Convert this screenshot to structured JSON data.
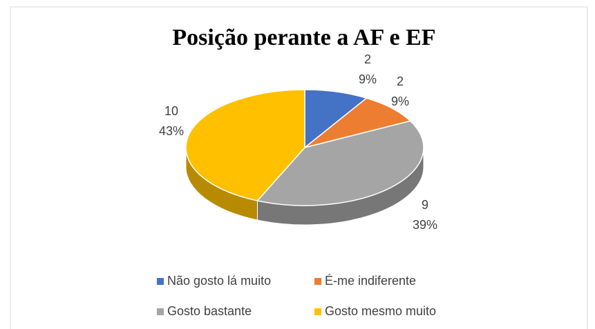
{
  "chart_data": {
    "type": "pie3d",
    "title": "Posição perante a AF e EF",
    "categories": [
      "Não gosto lá muito",
      "É-me indiferente",
      "Gosto bastante",
      "Gosto mesmo muito"
    ],
    "values": [
      2,
      2,
      9,
      10
    ],
    "percent_labels": [
      "9%",
      "9%",
      "39%",
      "43%"
    ],
    "colors": [
      "#4472c4",
      "#ed7d31",
      "#a5a5a5",
      "#ffc000"
    ],
    "legend": "bottom"
  }
}
